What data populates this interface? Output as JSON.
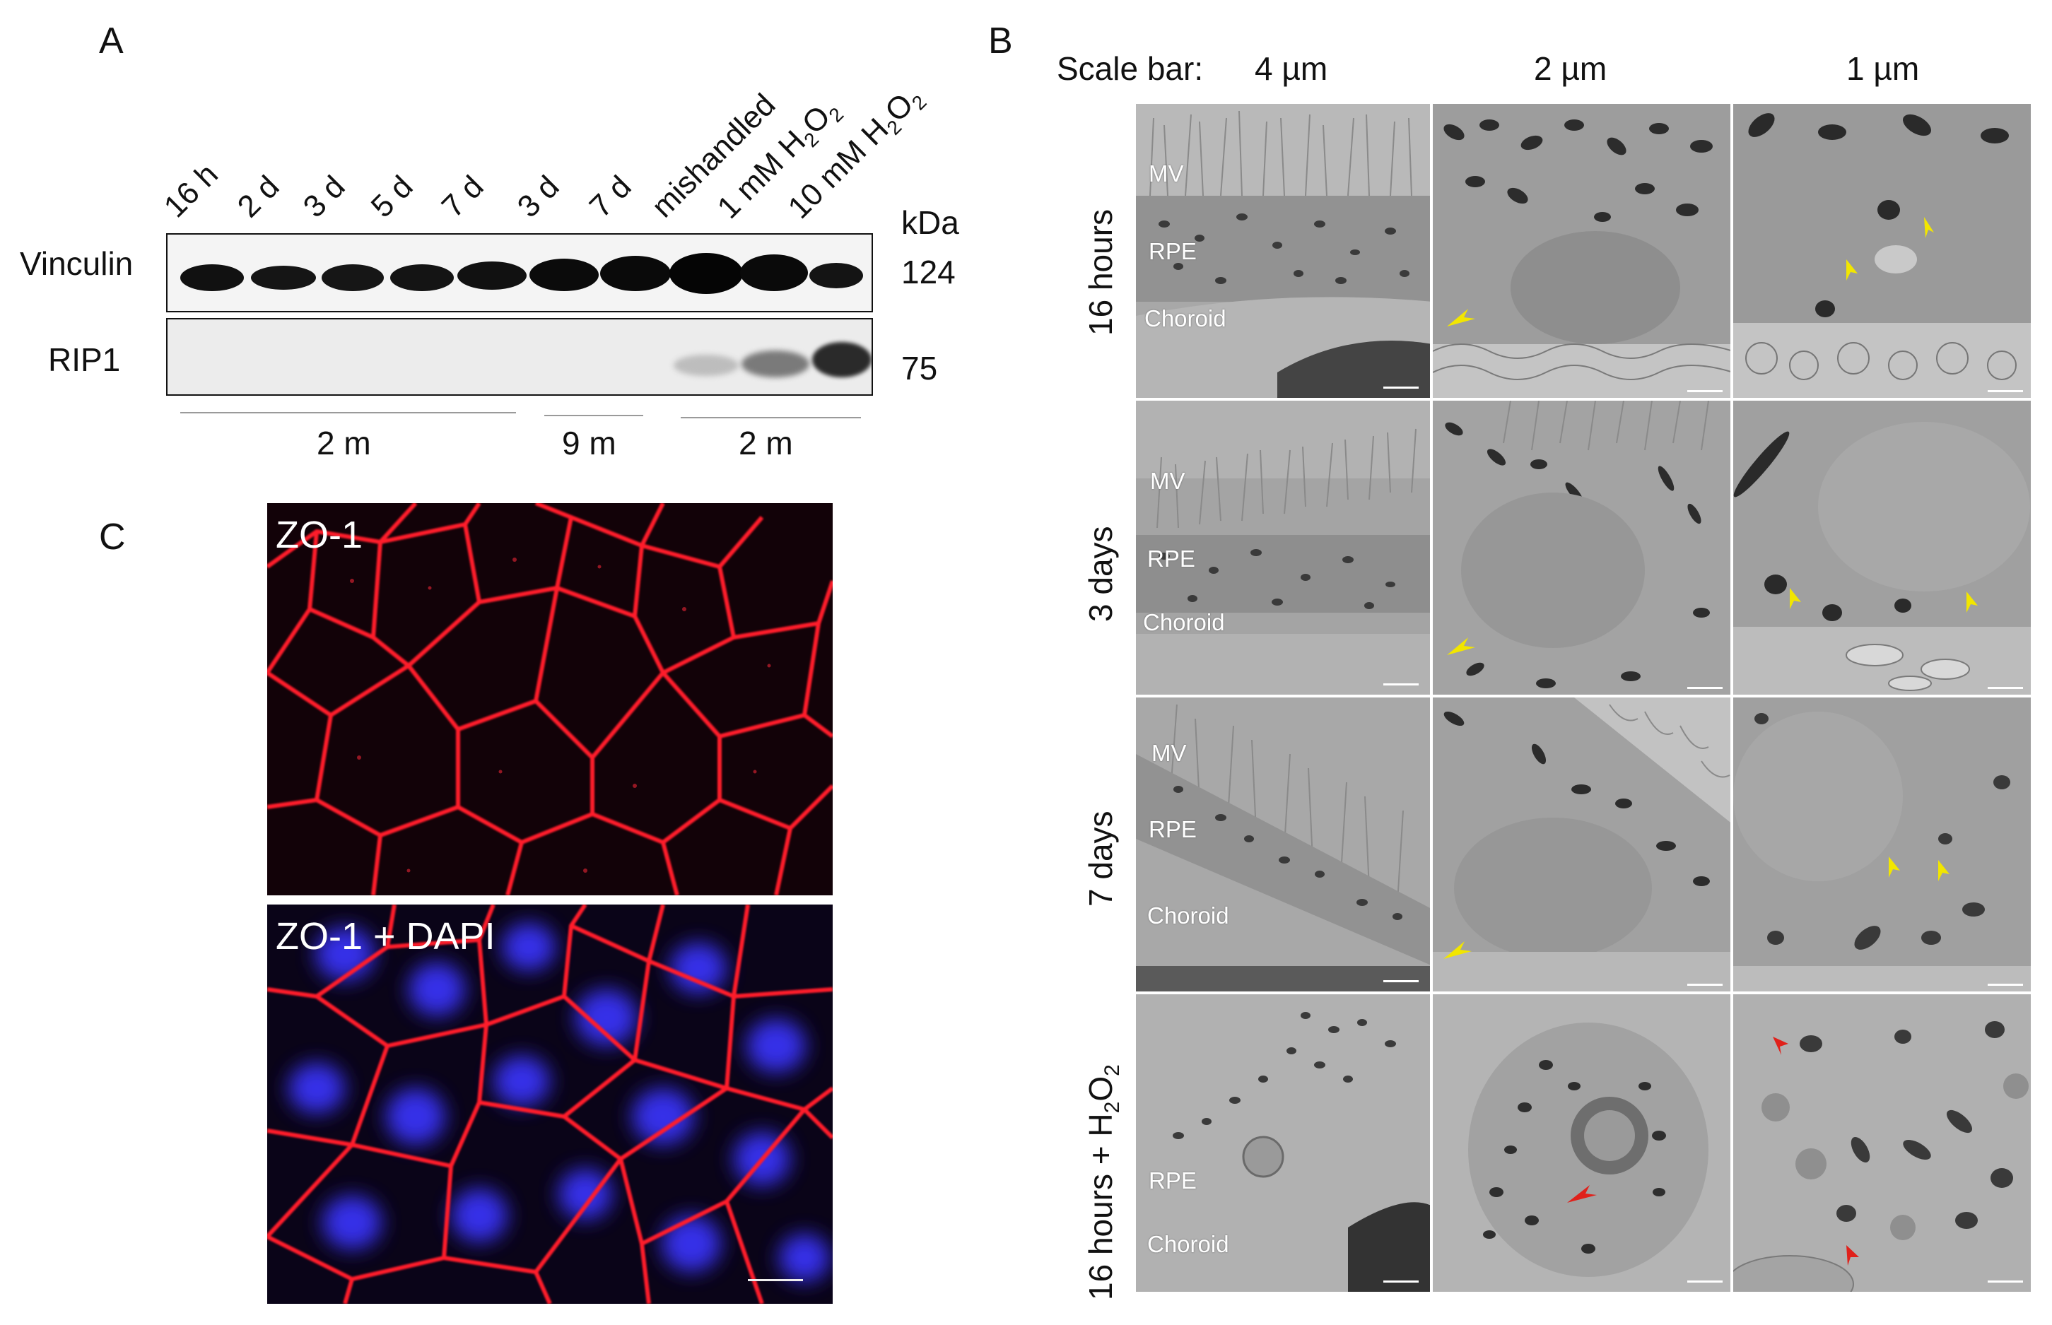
{
  "panels": {
    "a": "A",
    "b": "B",
    "c": "C"
  },
  "western_blot": {
    "lanes": [
      "16 h",
      "2 d",
      "3 d",
      "5 d",
      "7 d",
      "3 d",
      "7 d",
      "mishandled",
      "1 mM H",
      "10 mM H"
    ],
    "lane_h2o2_subscript": "2",
    "lane_h2o2_o": "O",
    "unit_label": "kDa",
    "rows": [
      {
        "name": "Vinculin",
        "kda": "124"
      },
      {
        "name": "RIP1",
        "kda": "75"
      }
    ],
    "groups": [
      "2 m",
      "9 m",
      "2 m"
    ]
  },
  "em": {
    "scale_bar_label": "Scale bar:",
    "columns": [
      "4 µm",
      "2 µm",
      "1 µm"
    ],
    "rows": [
      {
        "label": "16 hours",
        "layers": [
          "MV",
          "RPE",
          "Choroid"
        ]
      },
      {
        "label": "3 days",
        "layers": [
          "MV",
          "RPE",
          "Choroid"
        ]
      },
      {
        "label": "7 days",
        "layers": [
          "MV",
          "RPE",
          "Choroid"
        ]
      },
      {
        "label": "16 hours + H",
        "sub": "2",
        "tail": "O",
        "sub2": "2",
        "layers": [
          "RPE",
          "Choroid"
        ]
      }
    ],
    "arrow_colors": {
      "yellow": "#f2e600",
      "red": "#e0211b"
    }
  },
  "immunofluorescence": {
    "top_label": "ZO-1",
    "bottom_label": "ZO-1 + DAPI",
    "colors": {
      "membrane": "#ff1a2a",
      "nuclei": "#2a2aff",
      "background": "#120208"
    }
  }
}
